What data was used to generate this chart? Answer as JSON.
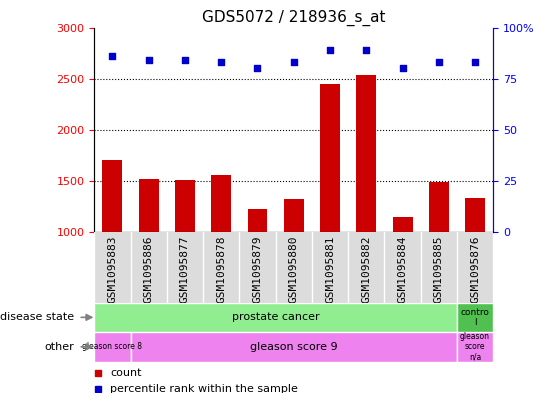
{
  "title": "GDS5072 / 218936_s_at",
  "samples": [
    "GSM1095883",
    "GSM1095886",
    "GSM1095877",
    "GSM1095878",
    "GSM1095879",
    "GSM1095880",
    "GSM1095881",
    "GSM1095882",
    "GSM1095884",
    "GSM1095885",
    "GSM1095876"
  ],
  "counts": [
    1700,
    1520,
    1510,
    1555,
    1220,
    1320,
    2450,
    2540,
    1150,
    1490,
    1330
  ],
  "percentiles": [
    86,
    84,
    84,
    83,
    80,
    83,
    89,
    89,
    80,
    83,
    83
  ],
  "ylim_left": [
    1000,
    3000
  ],
  "ylim_right": [
    0,
    100
  ],
  "yticks_left": [
    1000,
    1500,
    2000,
    2500,
    3000
  ],
  "yticks_right": [
    0,
    25,
    50,
    75,
    100
  ],
  "grid_values": [
    1500,
    2000,
    2500
  ],
  "bar_color": "#CC0000",
  "dot_color": "#0000CC",
  "gray_bg": "#DCDCDC",
  "green_bg": "#90EE90",
  "magenta_bg": "#EE82EE",
  "title_fontsize": 11,
  "tick_fontsize": 8,
  "label_fontsize": 8,
  "legend_fontsize": 8
}
